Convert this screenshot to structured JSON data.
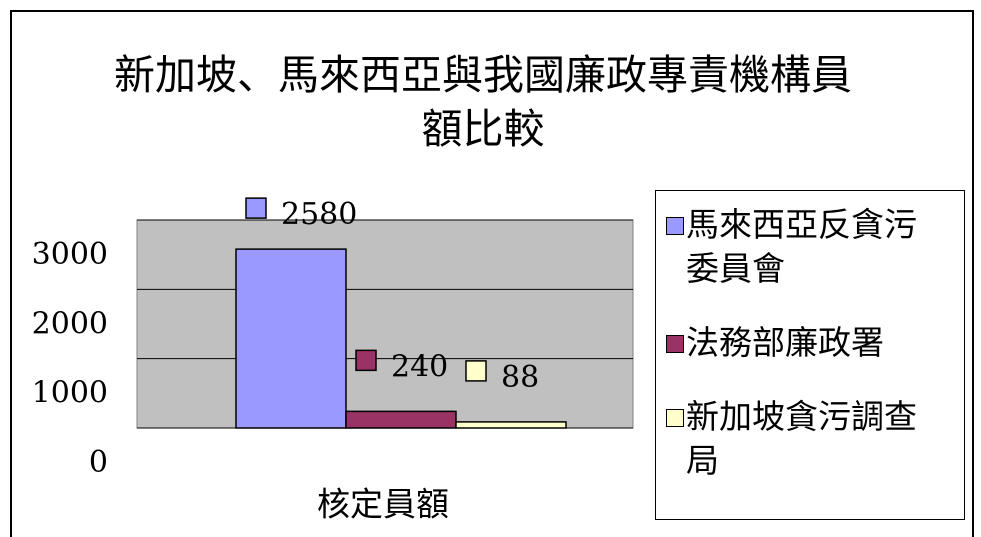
{
  "chart_data": {
    "type": "bar",
    "title": "新加坡、馬來西亞與我國廉政專責機構員額比較",
    "categories": [
      "核定員額"
    ],
    "series": [
      {
        "name": "馬來西亞反貪污委員會",
        "color": "#9999ff",
        "values": [
          2580
        ]
      },
      {
        "name": "法務部廉政署",
        "color": "#993366",
        "values": [
          240
        ]
      },
      {
        "name": "新加坡貪污調查局",
        "color": "#ffffcc",
        "values": [
          88
        ]
      }
    ],
    "ylim": [
      0,
      3000
    ],
    "yticks": [
      0,
      1000,
      2000,
      3000
    ],
    "grid": true,
    "legend": "right"
  }
}
